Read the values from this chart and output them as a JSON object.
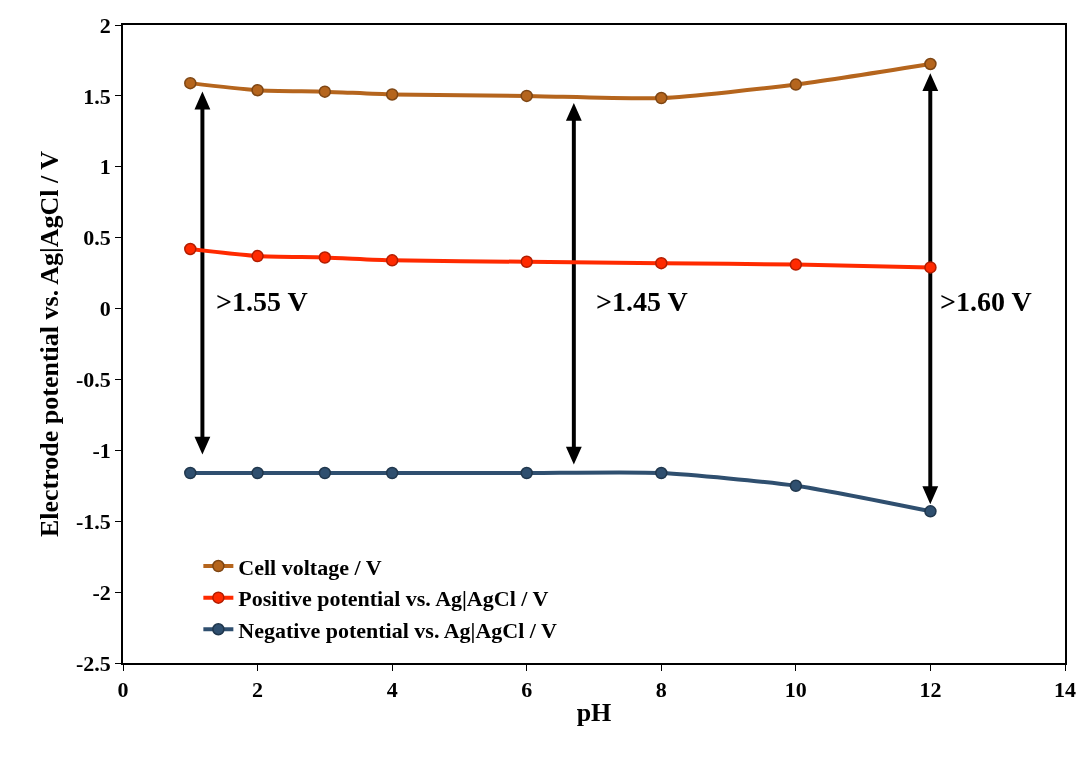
{
  "chart_data": {
    "type": "line",
    "xlabel": "pH",
    "ylabel": "Electrode potential vs. Ag|AgCl / V",
    "x": [
      1,
      2,
      3,
      4,
      6,
      8,
      10,
      12
    ],
    "series": [
      {
        "name": "Cell voltage / V",
        "color": "#b5651d",
        "values": [
          1.59,
          1.54,
          1.53,
          1.51,
          1.5,
          1.485,
          1.58,
          1.725
        ]
      },
      {
        "name": "Positive potential vs. Ag|AgCl / V",
        "color": "#ff2a00",
        "values": [
          0.42,
          0.37,
          0.36,
          0.34,
          0.33,
          0.32,
          0.31,
          0.29
        ]
      },
      {
        "name": "Negative potential vs. Ag|AgCl / V",
        "color": "#2f4f6f",
        "values": [
          -1.16,
          -1.16,
          -1.16,
          -1.16,
          -1.16,
          -1.16,
          -1.25,
          -1.43
        ]
      }
    ],
    "xlim": [
      0,
      14
    ],
    "xticks": [
      0,
      2,
      4,
      6,
      8,
      10,
      12,
      14
    ],
    "ylim": [
      -2.5,
      2
    ],
    "yticks": [
      -2.5,
      -2,
      -1.5,
      -1,
      -0.5,
      0,
      0.5,
      1,
      1.5,
      2
    ],
    "annotations": [
      ">1.55 V",
      ">1.45 V",
      ">1.60 V"
    ],
    "legend": "bottom left",
    "marker": "circle",
    "line_style": "solid"
  }
}
